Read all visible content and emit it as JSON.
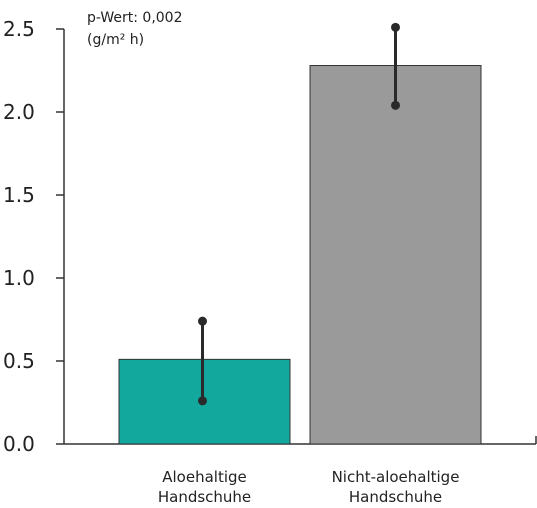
{
  "chart_data": {
    "type": "bar",
    "title": "",
    "xlabel": "",
    "ylabel": "",
    "annotation": "p-Wert: 0,002",
    "unit": "(g/m² h)",
    "categories": [
      [
        "Aloehaltige",
        "Handschuhe"
      ],
      [
        "Nicht-aloehaltige",
        "Handschuhe"
      ]
    ],
    "values": [
      0.51,
      2.28
    ],
    "error_low": [
      0.26,
      2.04
    ],
    "error_high": [
      0.74,
      2.51
    ],
    "colors": [
      "#13a89e",
      "#9a9a9a"
    ],
    "ylim": [
      0.0,
      2.5
    ],
    "yticks": [
      "0.0",
      "0.5",
      "1.0",
      "1.5",
      "2.0",
      "2.5"
    ],
    "grid": false
  }
}
